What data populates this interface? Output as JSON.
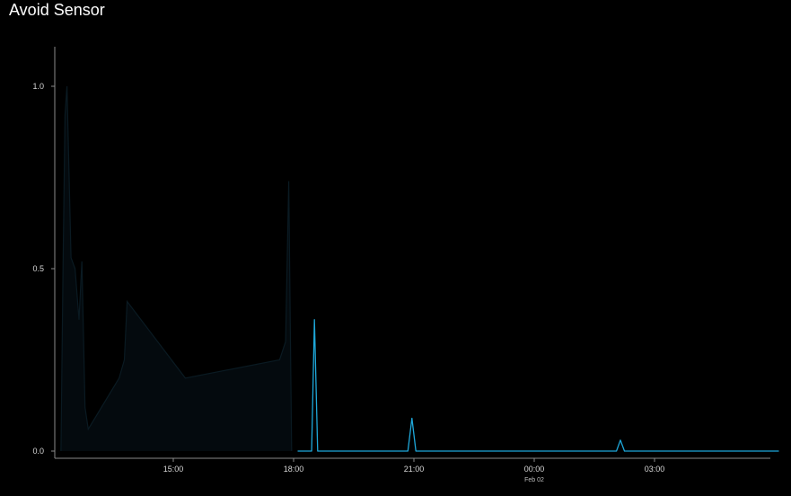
{
  "title": "Avoid Sensor",
  "colors": {
    "background": "#000000",
    "axis": "#8a8a8a",
    "history_fill": "#040a0e",
    "history_stroke": "#0a1a22",
    "series": "#1ea7d9"
  },
  "chart_data": {
    "type": "line",
    "title": "Avoid Sensor",
    "xlabel": "",
    "ylabel": "",
    "x_unit": "hours since 12:00 (Feb 01)",
    "xlim": [
      12.0,
      30.3
    ],
    "ylim": [
      0,
      1.1
    ],
    "x_ticks": [
      {
        "x": 15,
        "label": "15:00",
        "sublabel": ""
      },
      {
        "x": 18,
        "label": "18:00",
        "sublabel": ""
      },
      {
        "x": 21,
        "label": "21:00",
        "sublabel": ""
      },
      {
        "x": 24,
        "label": "00:00",
        "sublabel": "Feb 02"
      },
      {
        "x": 27,
        "label": "03:00",
        "sublabel": ""
      }
    ],
    "y_ticks": [
      {
        "y": 0.0,
        "label": "0.0"
      },
      {
        "y": 0.5,
        "label": "0.5"
      },
      {
        "y": 1.0,
        "label": "1.0"
      }
    ],
    "series": [
      {
        "style": "area-dim",
        "points": [
          [
            12.2,
            0.0
          ],
          [
            12.25,
            0.5
          ],
          [
            12.3,
            0.92
          ],
          [
            12.35,
            1.0
          ],
          [
            12.45,
            0.53
          ],
          [
            12.55,
            0.5
          ],
          [
            12.65,
            0.36
          ],
          [
            12.72,
            0.52
          ],
          [
            12.8,
            0.12
          ],
          [
            12.88,
            0.06
          ],
          [
            13.65,
            0.2
          ],
          [
            13.78,
            0.25
          ],
          [
            13.85,
            0.41
          ],
          [
            15.3,
            0.2
          ],
          [
            17.65,
            0.25
          ],
          [
            17.8,
            0.3
          ],
          [
            17.88,
            0.74
          ],
          [
            17.95,
            0.0
          ]
        ]
      },
      {
        "style": "line",
        "points": [
          [
            18.1,
            0.0
          ],
          [
            18.45,
            0.0
          ],
          [
            18.52,
            0.36
          ],
          [
            18.6,
            0.0
          ],
          [
            20.85,
            0.0
          ],
          [
            20.95,
            0.09
          ],
          [
            21.05,
            0.0
          ],
          [
            26.05,
            0.0
          ],
          [
            26.15,
            0.03
          ],
          [
            26.25,
            0.0
          ],
          [
            30.1,
            0.0
          ]
        ]
      }
    ]
  }
}
